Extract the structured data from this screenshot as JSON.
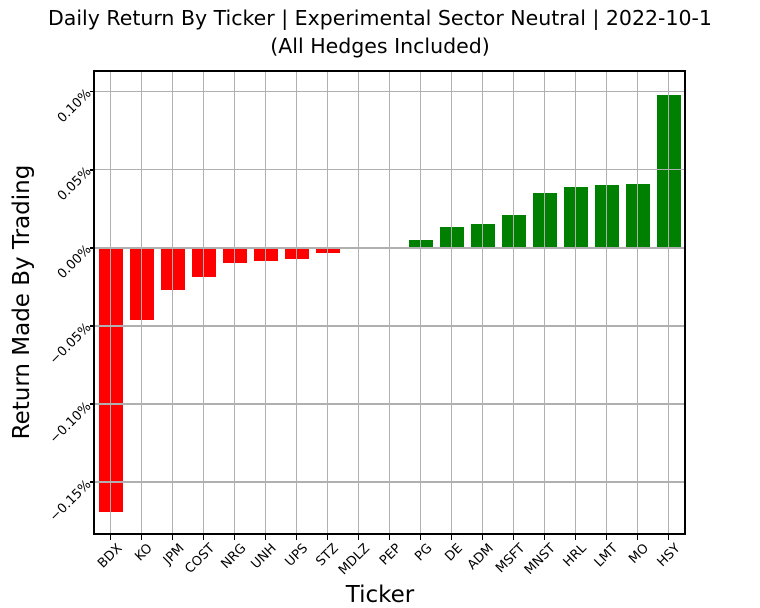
{
  "chart_data": {
    "type": "bar",
    "title": "Daily Return By Ticker | Experimental Sector Neutral | 2022-10-1",
    "subtitle": "(All Hedges Included)",
    "xlabel": "Ticker",
    "ylabel": "Return Made By Trading",
    "unit": "percent",
    "categories": [
      "BDX",
      "KO",
      "JPM",
      "COST",
      "NRG",
      "UNH",
      "UPS",
      "STZ",
      "MDLZ",
      "PEP",
      "PG",
      "DE",
      "ADM",
      "MSFT",
      "MNST",
      "HRL",
      "LMT",
      "MO",
      "HSY"
    ],
    "values": [
      -0.169,
      -0.046,
      -0.027,
      -0.019,
      -0.01,
      -0.0085,
      -0.007,
      -0.0035,
      0.0,
      0.0,
      0.005,
      0.013,
      0.015,
      0.021,
      0.035,
      0.039,
      0.04,
      0.041,
      0.098
    ],
    "yticks": [
      0.1,
      0.05,
      0.0,
      -0.05,
      -0.1,
      -0.15
    ],
    "ytick_labels": [
      "0.10%",
      "0.05%",
      "0.00%",
      "−0.05%",
      "−0.10%",
      "−0.15%"
    ],
    "ylim": [
      -0.1825,
      0.1125
    ],
    "grid": true,
    "legend": false,
    "colors": {
      "positive": "#008000",
      "negative": "#ff0000",
      "grid": "#b0b0b0",
      "axes": "#000000",
      "background": "#ffffff"
    }
  }
}
